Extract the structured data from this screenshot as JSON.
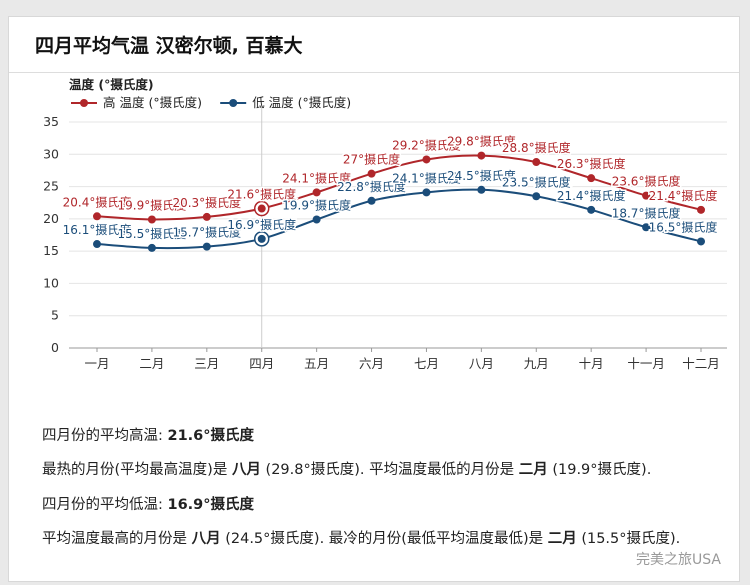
{
  "page": {
    "title": "四月平均气温 汉密尔顿, 百慕大"
  },
  "colors": {
    "high": "#b0262a",
    "low": "#1b4d7a",
    "grid": "#e4e4e4",
    "highlight_line": "#cccccc"
  },
  "chart_data": {
    "type": "line",
    "ylabel": "温度 (°摄氏度)",
    "ylim": [
      0,
      35
    ],
    "yticks": [
      0,
      5,
      10,
      15,
      20,
      25,
      30,
      35
    ],
    "categories": [
      "一月",
      "二月",
      "三月",
      "四月",
      "五月",
      "六月",
      "七月",
      "八月",
      "九月",
      "十月",
      "十一月",
      "十二月"
    ],
    "highlight_category": "四月",
    "grid": true,
    "legend_position": "top-left",
    "series": [
      {
        "name": "高 温度 (°摄氏度)",
        "color": "#b0262a",
        "values": [
          20.4,
          19.9,
          20.3,
          21.6,
          24.1,
          27,
          29.2,
          29.8,
          28.8,
          26.3,
          23.6,
          21.4
        ],
        "labels": [
          "20.4°摄氏度",
          "19.9°摄氏度",
          "20.3°摄氏度",
          "21.6°摄氏度",
          "24.1°摄氏度",
          "27°摄氏度",
          "29.2°摄氏度",
          "29.8°摄氏度",
          "28.8°摄氏度",
          "26.3°摄氏度",
          "23.6°摄氏度",
          "21.4°摄氏度"
        ]
      },
      {
        "name": "低 温度 (°摄氏度)",
        "color": "#1b4d7a",
        "values": [
          16.1,
          15.5,
          15.7,
          16.9,
          19.9,
          22.8,
          24.1,
          24.5,
          23.5,
          21.4,
          18.7,
          16.5
        ],
        "labels": [
          "16.1°摄氏度",
          "15.5°摄氏度",
          "15.7°摄氏度",
          "16.9°摄氏度",
          "19.9°摄氏度",
          "22.8°摄氏度",
          "24.1°摄氏度",
          "24.5°摄氏度",
          "23.5°摄氏度",
          "21.4°摄氏度",
          "18.7°摄氏度",
          "16.5°摄氏度"
        ]
      }
    ]
  },
  "summary": {
    "avg_high_label": "四月份的平均高温: ",
    "avg_high_value": "21.6°摄氏度",
    "hottest_prefix": "最热的月份(平均最高温度)是 ",
    "hottest_month": "八月",
    "hottest_mid": " (29.8°摄氏度). 平均温度最低的月份是 ",
    "coolest_high_month": "二月",
    "hottest_suffix": " (19.9°摄氏度).",
    "avg_low_label": "四月份的平均低温: ",
    "avg_low_value": "16.9°摄氏度",
    "warmest_low_prefix": "平均温度最高的月份是 ",
    "warmest_low_month": "八月",
    "warmest_low_mid": " (24.5°摄氏度). 最冷的月份(最低平均温度最低)是 ",
    "coldest_month": "二月",
    "coldest_suffix": " (15.5°摄氏度)."
  },
  "watermark": "完美之旅USA"
}
